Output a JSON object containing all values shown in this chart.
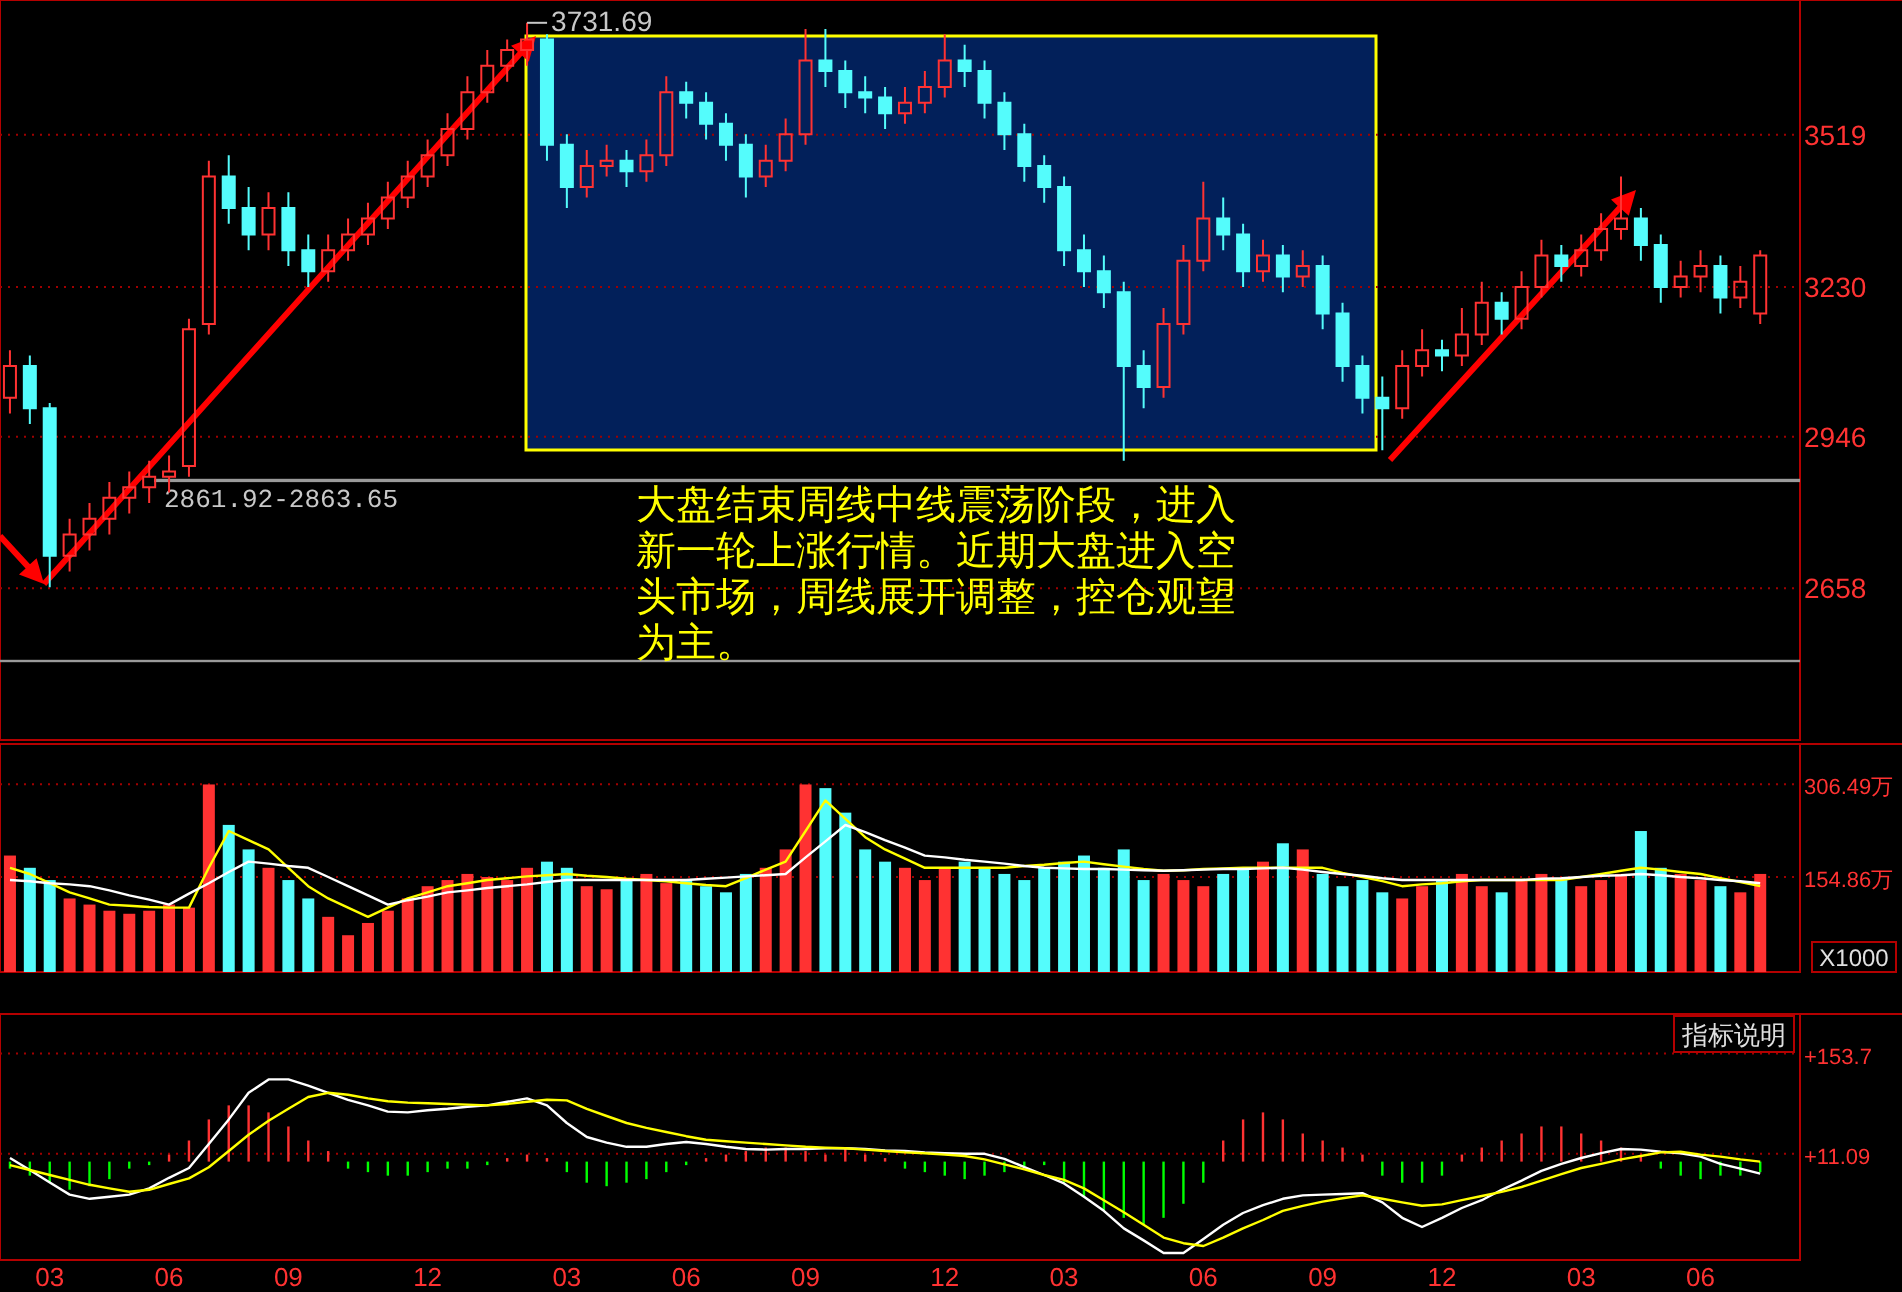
{
  "chart_data": [
    {
      "type": "candlestick",
      "categories": [
        null,
        null,
        "03",
        null,
        null,
        null,
        null,
        null,
        "06",
        null,
        null,
        null,
        null,
        null,
        "09",
        null,
        null,
        null,
        null,
        null,
        null,
        "12",
        null,
        null,
        null,
        null,
        null,
        null,
        "03",
        null,
        null,
        null,
        null,
        null,
        "06",
        null,
        null,
        null,
        null,
        null,
        "09",
        null,
        null,
        null,
        null,
        null,
        null,
        "12",
        null,
        null,
        null,
        null,
        null,
        "03",
        null,
        null,
        null,
        null,
        null,
        null,
        "06",
        null,
        null,
        null,
        null,
        null,
        "09",
        null,
        null,
        null,
        null,
        null,
        "12",
        null,
        null,
        null,
        null,
        null,
        null,
        "03",
        null,
        null,
        null,
        null,
        null,
        "06",
        null,
        null,
        null
      ],
      "ohlc": [
        [
          3020,
          3110,
          2990,
          3080
        ],
        [
          3080,
          3100,
          2970,
          3000
        ],
        [
          3000,
          3010,
          2660,
          2720
        ],
        [
          2720,
          2790,
          2690,
          2760
        ],
        [
          2760,
          2820,
          2730,
          2790
        ],
        [
          2790,
          2860,
          2760,
          2830
        ],
        [
          2830,
          2880,
          2800,
          2850
        ],
        [
          2850,
          2900,
          2820,
          2870
        ],
        [
          2870,
          2910,
          2840,
          2880
        ],
        [
          2890,
          3170,
          2870,
          3150
        ],
        [
          3160,
          3470,
          3140,
          3440
        ],
        [
          3440,
          3480,
          3350,
          3380
        ],
        [
          3380,
          3420,
          3300,
          3330
        ],
        [
          3330,
          3410,
          3300,
          3380
        ],
        [
          3380,
          3410,
          3270,
          3300
        ],
        [
          3300,
          3330,
          3230,
          3260
        ],
        [
          3260,
          3330,
          3240,
          3300
        ],
        [
          3300,
          3360,
          3280,
          3330
        ],
        [
          3330,
          3390,
          3310,
          3360
        ],
        [
          3360,
          3430,
          3340,
          3400
        ],
        [
          3400,
          3470,
          3380,
          3440
        ],
        [
          3440,
          3510,
          3420,
          3480
        ],
        [
          3480,
          3560,
          3460,
          3530
        ],
        [
          3530,
          3630,
          3510,
          3600
        ],
        [
          3600,
          3680,
          3580,
          3650
        ],
        [
          3650,
          3700,
          3620,
          3680
        ],
        [
          3680,
          3731.69,
          3650,
          3700
        ],
        [
          3700,
          3710,
          3470,
          3500
        ],
        [
          3500,
          3520,
          3380,
          3420
        ],
        [
          3420,
          3490,
          3400,
          3460
        ],
        [
          3460,
          3500,
          3440,
          3470
        ],
        [
          3470,
          3490,
          3420,
          3450
        ],
        [
          3450,
          3510,
          3430,
          3480
        ],
        [
          3480,
          3630,
          3460,
          3600
        ],
        [
          3600,
          3620,
          3550,
          3580
        ],
        [
          3580,
          3600,
          3510,
          3540
        ],
        [
          3540,
          3560,
          3470,
          3500
        ],
        [
          3500,
          3520,
          3400,
          3440
        ],
        [
          3440,
          3500,
          3420,
          3470
        ],
        [
          3470,
          3550,
          3450,
          3520
        ],
        [
          3520,
          3720,
          3500,
          3660
        ],
        [
          3660,
          3720,
          3610,
          3640
        ],
        [
          3640,
          3660,
          3570,
          3600
        ],
        [
          3600,
          3630,
          3560,
          3590
        ],
        [
          3590,
          3610,
          3530,
          3560
        ],
        [
          3560,
          3610,
          3540,
          3580
        ],
        [
          3580,
          3640,
          3560,
          3610
        ],
        [
          3610,
          3710,
          3590,
          3660
        ],
        [
          3660,
          3690,
          3610,
          3640
        ],
        [
          3640,
          3660,
          3550,
          3580
        ],
        [
          3580,
          3600,
          3490,
          3520
        ],
        [
          3520,
          3540,
          3430,
          3460
        ],
        [
          3460,
          3480,
          3390,
          3420
        ],
        [
          3420,
          3440,
          3270,
          3300
        ],
        [
          3300,
          3330,
          3230,
          3260
        ],
        [
          3260,
          3290,
          3190,
          3220
        ],
        [
          3220,
          3240,
          2900,
          3080
        ],
        [
          3080,
          3110,
          3000,
          3040
        ],
        [
          3040,
          3190,
          3020,
          3160
        ],
        [
          3160,
          3310,
          3140,
          3280
        ],
        [
          3280,
          3430,
          3260,
          3360
        ],
        [
          3360,
          3400,
          3300,
          3330
        ],
        [
          3330,
          3350,
          3230,
          3260
        ],
        [
          3260,
          3320,
          3240,
          3290
        ],
        [
          3290,
          3310,
          3220,
          3250
        ],
        [
          3250,
          3300,
          3230,
          3270
        ],
        [
          3270,
          3290,
          3150,
          3180
        ],
        [
          3180,
          3200,
          3050,
          3080
        ],
        [
          3080,
          3100,
          2990,
          3020
        ],
        [
          3020,
          3060,
          2920,
          3000
        ],
        [
          3000,
          3110,
          2980,
          3080
        ],
        [
          3080,
          3150,
          3060,
          3110
        ],
        [
          3110,
          3130,
          3070,
          3100
        ],
        [
          3100,
          3190,
          3080,
          3140
        ],
        [
          3140,
          3240,
          3120,
          3200
        ],
        [
          3200,
          3220,
          3140,
          3170
        ],
        [
          3170,
          3260,
          3150,
          3230
        ],
        [
          3230,
          3320,
          3210,
          3290
        ],
        [
          3290,
          3310,
          3240,
          3270
        ],
        [
          3270,
          3330,
          3250,
          3300
        ],
        [
          3300,
          3370,
          3280,
          3340
        ],
        [
          3340,
          3440,
          3320,
          3360
        ],
        [
          3360,
          3380,
          3280,
          3310
        ],
        [
          3310,
          3330,
          3200,
          3230
        ],
        [
          3230,
          3280,
          3210,
          3250
        ],
        [
          3250,
          3300,
          3220,
          3270
        ],
        [
          3270,
          3290,
          3180,
          3210
        ],
        [
          3210,
          3270,
          3190,
          3240
        ],
        [
          3180,
          3300,
          3160,
          3290
        ]
      ],
      "colors": [
        "#ff3232",
        "#54fcfc",
        "#54fcfc",
        "#ff3232",
        "#ff3232",
        "#ff3232",
        "#ff3232",
        "#ff3232",
        "#ff3232",
        "#ff3232",
        "#ff3232",
        "#54fcfc",
        "#54fcfc",
        "#ff3232",
        "#54fcfc",
        "#54fcfc",
        "#ff3232",
        "#ff3232",
        "#ff3232",
        "#ff3232",
        "#ff3232",
        "#ff3232",
        "#ff3232",
        "#ff3232",
        "#ff3232",
        "#ff3232",
        "#ff3232",
        "#54fcfc",
        "#54fcfc",
        "#ff3232",
        "#ff3232",
        "#54fcfc",
        "#ff3232",
        "#ff3232",
        "#54fcfc",
        "#54fcfc",
        "#54fcfc",
        "#54fcfc",
        "#ff3232",
        "#ff3232",
        "#ff3232",
        "#54fcfc",
        "#54fcfc",
        "#54fcfc",
        "#54fcfc",
        "#ff3232",
        "#ff3232",
        "#ff3232",
        "#54fcfc",
        "#54fcfc",
        "#54fcfc",
        "#54fcfc",
        "#54fcfc",
        "#54fcfc",
        "#54fcfc",
        "#54fcfc",
        "#54fcfc",
        "#54fcfc",
        "#ff3232",
        "#ff3232",
        "#ff3232",
        "#54fcfc",
        "#54fcfc",
        "#ff3232",
        "#54fcfc",
        "#ff3232",
        "#54fcfc",
        "#54fcfc",
        "#54fcfc",
        "#54fcfc",
        "#ff3232",
        "#ff3232",
        "#54fcfc",
        "#ff3232",
        "#ff3232",
        "#54fcfc",
        "#ff3232",
        "#ff3232",
        "#54fcfc",
        "#ff3232",
        "#ff3232",
        "#ff3232",
        "#54fcfc",
        "#54fcfc",
        "#ff3232",
        "#ff3232",
        "#54fcfc",
        "#ff3232",
        "#ff3232"
      ],
      "ylim": [
        2370,
        3775
      ],
      "yticks": [
        2658,
        2946,
        3230,
        3519
      ],
      "grid": "y",
      "tick_labels": "y",
      "bands": [
        {
          "axis": "y",
          "from": 2861.92,
          "to": 2863.65,
          "label": "2861.92-2863.65",
          "color": "#9a9a9a"
        }
      ],
      "ref_lines": [
        {
          "axis": "y",
          "value": 2520,
          "color": "#9a9a9a"
        }
      ],
      "annotations": [
        "3731.69",
        "大盘结束周线中线震荡阶段，进入新一轮上涨行情。近期大盘进入空头市场，周线展开调整，控仓观望为主。"
      ]
    },
    {
      "type": "bar",
      "categories": [
        null,
        null,
        "03",
        null,
        null,
        null,
        null,
        null,
        "06",
        null,
        null,
        null,
        null,
        null,
        "09",
        null,
        null,
        null,
        null,
        null,
        null,
        "12",
        null,
        null,
        null,
        null,
        null,
        null,
        "03",
        null,
        null,
        null,
        null,
        null,
        "06",
        null,
        null,
        null,
        null,
        null,
        "09",
        null,
        null,
        null,
        null,
        null,
        null,
        "12",
        null,
        null,
        null,
        null,
        null,
        "03",
        null,
        null,
        null,
        null,
        null,
        null,
        "06",
        null,
        null,
        null,
        null,
        null,
        "09",
        null,
        null,
        null,
        null,
        null,
        "12",
        null,
        null,
        null,
        null,
        null,
        null,
        "03",
        null,
        null,
        null,
        null,
        null,
        "06",
        null,
        null,
        null
      ],
      "series": [
        {
          "type": "bar",
          "values": [
            190,
            170,
            150,
            120,
            110,
            100,
            95,
            100,
            110,
            105,
            306,
            240,
            200,
            170,
            150,
            120,
            90,
            60,
            80,
            100,
            120,
            140,
            150,
            160,
            155,
            150,
            170,
            180,
            170,
            140,
            135,
            150,
            160,
            145,
            150,
            140,
            130,
            160,
            170,
            200,
            306,
            300,
            260,
            200,
            180,
            170,
            150,
            170,
            180,
            170,
            160,
            150,
            170,
            180,
            190,
            170,
            200,
            150,
            160,
            150,
            140,
            160,
            170,
            180,
            210,
            200,
            160,
            140,
            150,
            130,
            120,
            140,
            150,
            160,
            140,
            130,
            150,
            160,
            150,
            140,
            150,
            160,
            230,
            170,
            160,
            150,
            140,
            130,
            160
          ],
          "colors": [
            "#ff3232",
            "#54fcfc",
            "#54fcfc",
            "#ff3232",
            "#ff3232",
            "#ff3232",
            "#ff3232",
            "#ff3232",
            "#ff3232",
            "#ff3232",
            "#ff3232",
            "#54fcfc",
            "#54fcfc",
            "#ff3232",
            "#54fcfc",
            "#54fcfc",
            "#ff3232",
            "#ff3232",
            "#ff3232",
            "#ff3232",
            "#ff3232",
            "#ff3232",
            "#ff3232",
            "#ff3232",
            "#ff3232",
            "#ff3232",
            "#ff3232",
            "#54fcfc",
            "#54fcfc",
            "#ff3232",
            "#ff3232",
            "#54fcfc",
            "#ff3232",
            "#ff3232",
            "#54fcfc",
            "#54fcfc",
            "#54fcfc",
            "#54fcfc",
            "#ff3232",
            "#ff3232",
            "#ff3232",
            "#54fcfc",
            "#54fcfc",
            "#54fcfc",
            "#54fcfc",
            "#ff3232",
            "#ff3232",
            "#ff3232",
            "#54fcfc",
            "#54fcfc",
            "#54fcfc",
            "#54fcfc",
            "#54fcfc",
            "#54fcfc",
            "#54fcfc",
            "#54fcfc",
            "#54fcfc",
            "#54fcfc",
            "#ff3232",
            "#ff3232",
            "#ff3232",
            "#54fcfc",
            "#54fcfc",
            "#ff3232",
            "#54fcfc",
            "#ff3232",
            "#54fcfc",
            "#54fcfc",
            "#54fcfc",
            "#54fcfc",
            "#ff3232",
            "#ff3232",
            "#54fcfc",
            "#ff3232",
            "#ff3232",
            "#54fcfc",
            "#ff3232",
            "#ff3232",
            "#54fcfc",
            "#ff3232",
            "#ff3232",
            "#ff3232",
            "#54fcfc",
            "#54fcfc",
            "#ff3232",
            "#ff3232",
            "#54fcfc",
            "#ff3232",
            "#ff3232"
          ]
        },
        {
          "type": "line",
          "color": "#ffff00",
          "values": [
            170,
            160,
            145,
            130,
            120,
            110,
            108,
            106,
            105,
            105,
            170,
            230,
            215,
            200,
            170,
            140,
            120,
            105,
            90,
            105,
            120,
            130,
            140,
            145,
            150,
            153,
            156,
            158,
            160,
            157,
            155,
            152,
            150,
            148,
            145,
            142,
            140,
            153,
            167,
            180,
            230,
            280,
            250,
            220,
            200,
            185,
            170,
            170,
            170,
            170,
            170,
            173,
            175,
            178,
            180,
            176,
            172,
            168,
            165,
            166,
            168,
            169,
            170,
            170,
            170,
            170,
            170,
            162,
            155,
            148,
            140,
            143,
            145,
            148,
            150,
            150,
            150,
            150,
            150,
            155,
            160,
            165,
            170,
            167,
            163,
            160,
            153,
            147,
            140
          ]
        },
        {
          "type": "line",
          "color": "#ffffff",
          "values": [
            150,
            148,
            145,
            143,
            140,
            133,
            125,
            118,
            110,
            128,
            145,
            163,
            180,
            177,
            173,
            170,
            155,
            140,
            125,
            110,
            117,
            123,
            130,
            133,
            137,
            140,
            143,
            147,
            150,
            150,
            150,
            150,
            150,
            150,
            150,
            152,
            154,
            156,
            158,
            160,
            187,
            213,
            240,
            228,
            215,
            203,
            190,
            187,
            183,
            180,
            177,
            173,
            170,
            169,
            168,
            168,
            167,
            166,
            165,
            166,
            167,
            168,
            168,
            169,
            170,
            167,
            163,
            160,
            157,
            153,
            150,
            150,
            150,
            150,
            150,
            150,
            150,
            152,
            153,
            155,
            157,
            158,
            160,
            158,
            155,
            153,
            150,
            148,
            145
          ]
        }
      ],
      "ylim": [
        0,
        372
      ],
      "yticks": [
        {
          "value": 154.86,
          "label": "154.86万"
        },
        {
          "value": 306.49,
          "label": "306.49万"
        }
      ],
      "grid": "y",
      "tick_labels": "y",
      "annotations": [
        "X1000"
      ]
    },
    {
      "type": "bar",
      "categories": [
        null,
        null,
        "03",
        null,
        null,
        null,
        null,
        null,
        "06",
        null,
        null,
        null,
        null,
        null,
        "09",
        null,
        null,
        null,
        null,
        null,
        null,
        "12",
        null,
        null,
        null,
        null,
        null,
        null,
        "03",
        null,
        null,
        null,
        null,
        null,
        "06",
        null,
        null,
        null,
        null,
        null,
        "09",
        null,
        null,
        null,
        null,
        null,
        null,
        "12",
        null,
        null,
        null,
        null,
        null,
        "03",
        null,
        null,
        null,
        null,
        null,
        null,
        "06",
        null,
        null,
        null,
        null,
        null,
        "09",
        null,
        null,
        null,
        null,
        null,
        "12",
        null,
        null,
        null,
        null,
        null,
        null,
        "03",
        null,
        null,
        null,
        null,
        null,
        "06",
        null,
        null,
        null
      ],
      "series": [
        {
          "type": "bar",
          "values": [
            -10,
            -20,
            -30,
            -40,
            -35,
            -25,
            -10,
            -5,
            10,
            30,
            60,
            80,
            80,
            70,
            50,
            30,
            15,
            -10,
            -15,
            -20,
            -20,
            -15,
            -10,
            -10,
            -5,
            5,
            10,
            5,
            -15,
            -30,
            -35,
            -30,
            -25,
            -15,
            -5,
            5,
            10,
            15,
            20,
            20,
            15,
            10,
            20,
            10,
            5,
            -10,
            -15,
            -20,
            -25,
            -20,
            -15,
            -10,
            -5,
            -30,
            -50,
            -70,
            -80,
            -90,
            -80,
            -60,
            -30,
            30,
            60,
            70,
            60,
            40,
            30,
            20,
            10,
            -20,
            -30,
            -30,
            -20,
            10,
            20,
            30,
            40,
            50,
            50,
            40,
            30,
            20,
            10,
            -10,
            -20,
            -25,
            -20,
            -20,
            -15
          ],
          "colors": [
            "#00ff00",
            "#00ff00",
            "#00ff00",
            "#00ff00",
            "#00ff00",
            "#00ff00",
            "#00ff00",
            "#00ff00",
            "#ff3232",
            "#ff3232",
            "#ff3232",
            "#ff3232",
            "#ff3232",
            "#ff3232",
            "#ff3232",
            "#ff3232",
            "#ff3232",
            "#00ff00",
            "#00ff00",
            "#00ff00",
            "#00ff00",
            "#00ff00",
            "#00ff00",
            "#00ff00",
            "#00ff00",
            "#ff3232",
            "#ff3232",
            "#ff3232",
            "#00ff00",
            "#00ff00",
            "#00ff00",
            "#00ff00",
            "#00ff00",
            "#00ff00",
            "#00ff00",
            "#ff3232",
            "#ff3232",
            "#ff3232",
            "#ff3232",
            "#ff3232",
            "#ff3232",
            "#ff3232",
            "#ff3232",
            "#ff3232",
            "#ff3232",
            "#00ff00",
            "#00ff00",
            "#00ff00",
            "#00ff00",
            "#00ff00",
            "#00ff00",
            "#00ff00",
            "#00ff00",
            "#00ff00",
            "#00ff00",
            "#00ff00",
            "#00ff00",
            "#00ff00",
            "#00ff00",
            "#00ff00",
            "#00ff00",
            "#ff3232",
            "#ff3232",
            "#ff3232",
            "#ff3232",
            "#ff3232",
            "#ff3232",
            "#ff3232",
            "#ff3232",
            "#00ff00",
            "#00ff00",
            "#00ff00",
            "#00ff00",
            "#ff3232",
            "#ff3232",
            "#ff3232",
            "#ff3232",
            "#ff3232",
            "#ff3232",
            "#ff3232",
            "#ff3232",
            "#ff3232",
            "#ff3232",
            "#00ff00",
            "#00ff00",
            "#00ff00",
            "#00ff00",
            "#00ff00",
            "#00ff00"
          ]
        },
        {
          "type": "line",
          "color": "#ffffff",
          "values": [
            5,
            -12,
            -30,
            -47,
            -53,
            -50,
            -47,
            -38,
            -23,
            -9,
            25,
            60,
            98,
            117,
            117,
            108,
            98,
            88,
            80,
            71,
            70,
            73,
            75,
            78,
            80,
            85,
            90,
            80,
            55,
            35,
            27,
            21,
            21,
            25,
            28,
            25,
            21,
            18,
            17,
            18,
            18,
            19,
            19,
            18,
            16,
            15,
            13,
            12,
            11,
            11,
            4,
            -8,
            -19,
            -31,
            -50,
            -70,
            -95,
            -112,
            -130,
            -130,
            -110,
            -90,
            -73,
            -62,
            -53,
            -48,
            -47,
            -46,
            -45,
            -58,
            -80,
            -93,
            -80,
            -66,
            -55,
            -40,
            -27,
            -13,
            -3,
            5,
            12,
            18,
            17,
            14,
            12,
            7,
            -3,
            -10,
            -17
          ]
        },
        {
          "type": "line",
          "color": "#ffff00",
          "values": [
            -5,
            -12,
            -19,
            -26,
            -33,
            -38,
            -43,
            -40,
            -32,
            -24,
            -8,
            15,
            38,
            58,
            75,
            92,
            98,
            95,
            90,
            86,
            84,
            83,
            82,
            81,
            80,
            82,
            85,
            88,
            87,
            75,
            65,
            55,
            48,
            42,
            36,
            31,
            29,
            27,
            25,
            23,
            21,
            20,
            19,
            17,
            15,
            13,
            12,
            10,
            8,
            3,
            -4,
            -11,
            -19,
            -26,
            -38,
            -55,
            -72,
            -90,
            -108,
            -116,
            -120,
            -108,
            -95,
            -83,
            -70,
            -63,
            -57,
            -52,
            -48,
            -53,
            -58,
            -63,
            -61,
            -55,
            -49,
            -43,
            -36,
            -27,
            -18,
            -9,
            -3,
            3,
            8,
            13,
            14,
            10,
            7,
            3,
            0
          ]
        }
      ],
      "ylim": [
        -140,
        210
      ],
      "yticks": [
        {
          "value": 11.09,
          "label": "+11.09"
        },
        {
          "value": 153.7,
          "label": "+153.7"
        }
      ],
      "grid": "y",
      "annotations": [
        "指标说明"
      ]
    }
  ]
}
